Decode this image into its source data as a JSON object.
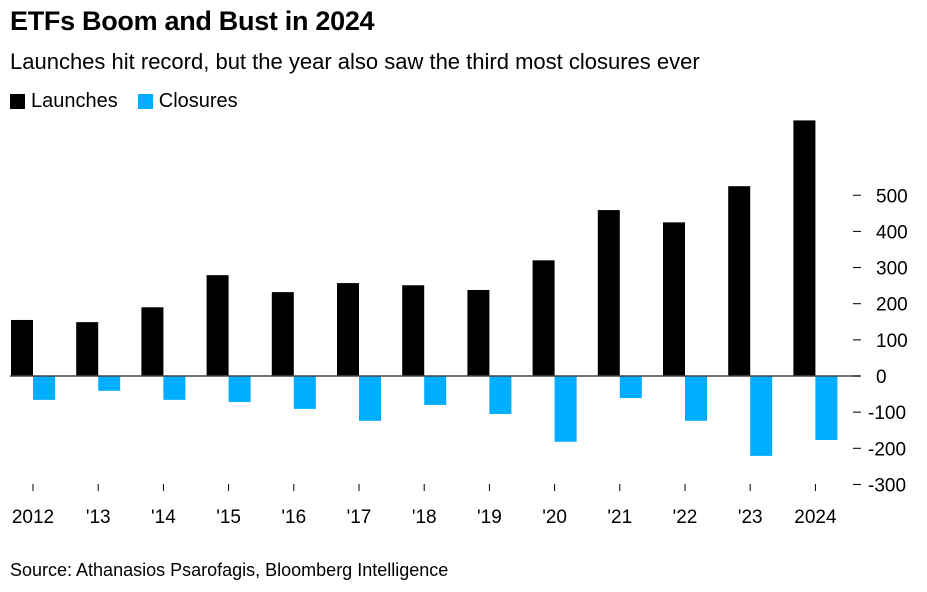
{
  "chart_data": {
    "type": "bar",
    "title": "ETFs Boom and Bust in 2024",
    "subtitle": "Launches hit record, but the year also saw the third most closures ever",
    "categories": [
      "2012",
      "'13",
      "'14",
      "'15",
      "'16",
      "'17",
      "'18",
      "'19",
      "'20",
      "'21",
      "'22",
      "'23",
      "2024"
    ],
    "series": [
      {
        "name": "Launches",
        "color": "#000000",
        "values": [
          155,
          149,
          190,
          279,
          232,
          257,
          251,
          238,
          320,
          459,
          425,
          525,
          707
        ]
      },
      {
        "name": "Closures",
        "color": "#00AEFF",
        "values": [
          -66,
          -41,
          -66,
          -72,
          -91,
          -124,
          -80,
          -105,
          -182,
          -61,
          -124,
          -221,
          -177
        ]
      }
    ],
    "yticks": [
      500,
      400,
      300,
      200,
      100,
      0,
      -100,
      -200,
      -300
    ],
    "ylim": [
      -300,
      720
    ],
    "y_axis_position": "right",
    "legend_position": "top-left",
    "grid": false,
    "source": "Source: Athanasios Psarofagis, Bloomberg Intelligence"
  }
}
